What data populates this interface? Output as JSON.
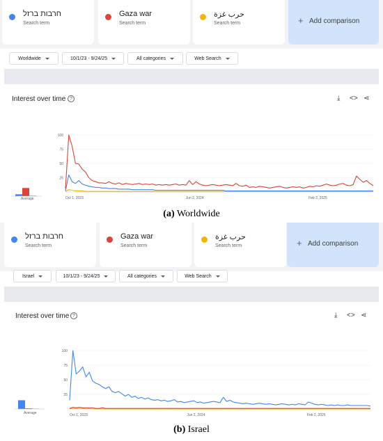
{
  "panels": [
    {
      "terms": [
        {
          "name": "חרבות ברזל",
          "sub": "Search term",
          "color": "#4285f4"
        },
        {
          "name": "Gaza war",
          "sub": "Search term",
          "color": "#db4437"
        },
        {
          "name": "حرب غزة",
          "sub": "Search term",
          "color": "#f4b400"
        }
      ],
      "add_comparison": "Add comparison",
      "filters": [
        "Worldwide",
        "10/1/23 - 9/24/25",
        "All categories",
        "Web Search"
      ],
      "section_title": "Interest over time",
      "avg_label": "Average",
      "y_ticks": [
        "100",
        "75",
        "50",
        "25"
      ],
      "x_ticks": [
        "Oct 1, 2023",
        "Jun 2, 2024",
        "Feb 2, 2025"
      ],
      "averages": [
        3,
        13,
        1
      ],
      "caption_letter": "(a)",
      "caption_text": "Worldwide"
    },
    {
      "terms": [
        {
          "name": "חרבות ברזל",
          "sub": "Search term",
          "color": "#4285f4"
        },
        {
          "name": "Gaza war",
          "sub": "Search term",
          "color": "#db4437"
        },
        {
          "name": "حرب غزة",
          "sub": "Search term",
          "color": "#f4b400"
        }
      ],
      "add_comparison": "Add comparison",
      "filters": [
        "Israel",
        "10/1/23 - 9/24/25",
        "All categories",
        "Web Search"
      ],
      "section_title": "Interest over time",
      "avg_label": "Average",
      "y_ticks": [
        "100",
        "75",
        "50",
        "25"
      ],
      "x_ticks": [
        "Oct 1, 2023",
        "Jun 2, 2024",
        "Feb 2, 2025"
      ],
      "averages": [
        14,
        1,
        0
      ],
      "caption_letter": "(b)",
      "caption_text": "Israel"
    }
  ],
  "chart_data": [
    {
      "type": "line",
      "ylim": [
        0,
        100
      ],
      "x_ticks": [
        "Oct 1, 2023",
        "Jun 2, 2024",
        "Feb 2, 2025"
      ],
      "series": [
        {
          "name": "Gaza war",
          "color": "#db4437",
          "values": [
            6,
            100,
            80,
            50,
            49,
            40,
            35,
            25,
            20,
            18,
            16,
            16,
            15,
            18,
            15,
            14,
            16,
            13,
            15,
            14,
            13,
            14,
            15,
            13,
            14,
            13,
            14,
            12,
            13,
            12,
            13,
            12,
            13,
            14,
            12,
            13,
            12,
            20,
            13,
            18,
            14,
            12,
            11,
            12,
            13,
            12,
            11,
            12,
            13,
            12,
            11,
            15,
            11,
            10,
            12,
            8,
            9,
            8,
            10,
            9,
            8,
            7,
            8,
            9,
            10,
            8,
            7,
            8,
            9,
            8,
            9,
            7,
            8,
            10,
            9,
            11,
            10,
            12,
            14,
            12,
            11,
            12,
            14,
            15,
            12,
            11,
            13,
            28,
            22,
            17,
            20,
            15,
            11
          ]
        },
        {
          "name": "חרבות ברזל",
          "color": "#4285f4",
          "values": [
            2,
            30,
            18,
            15,
            20,
            14,
            12,
            10,
            9,
            8,
            8,
            7,
            7,
            6,
            6,
            6,
            5,
            5,
            5,
            5,
            4,
            4,
            4,
            4,
            4,
            4,
            4,
            3,
            3,
            3,
            3,
            3,
            3,
            3,
            3,
            3,
            3,
            3,
            3,
            3,
            3,
            3,
            3,
            3,
            3,
            3,
            3,
            3,
            2,
            2,
            2,
            2,
            2,
            2,
            2,
            2,
            2,
            2,
            2,
            2,
            2,
            2,
            2,
            2,
            2,
            2,
            2,
            2,
            2,
            2,
            2,
            2,
            2,
            2,
            2,
            2,
            2,
            2,
            2,
            2,
            2,
            2,
            2,
            2,
            2,
            2,
            2,
            2,
            2,
            2,
            2,
            2,
            2
          ]
        },
        {
          "name": "حرب غزة",
          "color": "#f4b400",
          "values": [
            1,
            4,
            3,
            2,
            2,
            2,
            1,
            1,
            1,
            1,
            1,
            1,
            1,
            1,
            1,
            1,
            1,
            1,
            1,
            1,
            1,
            1,
            1,
            1,
            1,
            1,
            1,
            1,
            1,
            1,
            1,
            1,
            1,
            1,
            1,
            1,
            1,
            1,
            1,
            1,
            1,
            1,
            1,
            1,
            1,
            1,
            1,
            1,
            1,
            1,
            1,
            1,
            1,
            1,
            1,
            1,
            1,
            1,
            1,
            1,
            1,
            1,
            1,
            1,
            1,
            1,
            1,
            1,
            1,
            1,
            1,
            1,
            1,
            1,
            1,
            1,
            1,
            1,
            1,
            1,
            1,
            1,
            1,
            1,
            1,
            1,
            1,
            1,
            1,
            1,
            1,
            1,
            1
          ]
        }
      ]
    },
    {
      "type": "line",
      "ylim": [
        0,
        100
      ],
      "x_ticks": [
        "Oct 1, 2023",
        "Jun 2, 2024",
        "Feb 2, 2025"
      ],
      "series": [
        {
          "name": "חרבות ברזל",
          "color": "#4285f4",
          "values": [
            15,
            100,
            60,
            65,
            72,
            55,
            63,
            48,
            44,
            42,
            38,
            35,
            38,
            30,
            28,
            30,
            26,
            22,
            25,
            20,
            22,
            18,
            20,
            17,
            19,
            16,
            15,
            16,
            14,
            15,
            13,
            14,
            16,
            12,
            13,
            11,
            12,
            13,
            14,
            11,
            12,
            10,
            11,
            12,
            13,
            12,
            11,
            20,
            13,
            15,
            12,
            11,
            10,
            9,
            10,
            9,
            8,
            9,
            10,
            9,
            8,
            9,
            8,
            7,
            8,
            9,
            8,
            7,
            8,
            7,
            9,
            8,
            7,
            12,
            10,
            8,
            7,
            8,
            7,
            6,
            7,
            6,
            7,
            6,
            6,
            7,
            6,
            6,
            6,
            6,
            6,
            6,
            5
          ]
        },
        {
          "name": "Gaza war",
          "color": "#db4437",
          "values": [
            1,
            3,
            2,
            3,
            2,
            2,
            2,
            2,
            1,
            1,
            2,
            1,
            1,
            1,
            1,
            1,
            1,
            1,
            1,
            1,
            1,
            1,
            1,
            1,
            1,
            1,
            1,
            1,
            1,
            1,
            1,
            1,
            1,
            1,
            1,
            1,
            1,
            1,
            1,
            1,
            1,
            1,
            1,
            1,
            1,
            1,
            1,
            1,
            1,
            1,
            1,
            1,
            1,
            1,
            1,
            1,
            1,
            1,
            1,
            1,
            1,
            1,
            1,
            1,
            1,
            1,
            1,
            1,
            1,
            1,
            1,
            1,
            1,
            1,
            1,
            1,
            1,
            1,
            1,
            1,
            1,
            1,
            1,
            1,
            1,
            1,
            1,
            1,
            1,
            1,
            1,
            1,
            1
          ]
        },
        {
          "name": "حرب غزة",
          "color": "#f4b400",
          "values": [
            0,
            1,
            1,
            1,
            1,
            0,
            1,
            0,
            0,
            0,
            0,
            0,
            0,
            0,
            0,
            0,
            0,
            0,
            0,
            0,
            0,
            0,
            0,
            0,
            0,
            0,
            0,
            0,
            0,
            0,
            0,
            0,
            0,
            0,
            0,
            0,
            0,
            0,
            0,
            0,
            0,
            0,
            0,
            0,
            0,
            0,
            0,
            0,
            0,
            0,
            0,
            0,
            0,
            0,
            0,
            0,
            0,
            0,
            0,
            0,
            0,
            0,
            0,
            0,
            0,
            0,
            0,
            0,
            0,
            0,
            0,
            0,
            0,
            0,
            0,
            0,
            0,
            0,
            0,
            0,
            0,
            0,
            0,
            0,
            0,
            0,
            0,
            0,
            0,
            0,
            0,
            0,
            0
          ]
        }
      ]
    }
  ],
  "icons": {
    "download": "download-icon",
    "embed": "embed-code-icon",
    "share": "share-icon",
    "help": "help-icon"
  }
}
